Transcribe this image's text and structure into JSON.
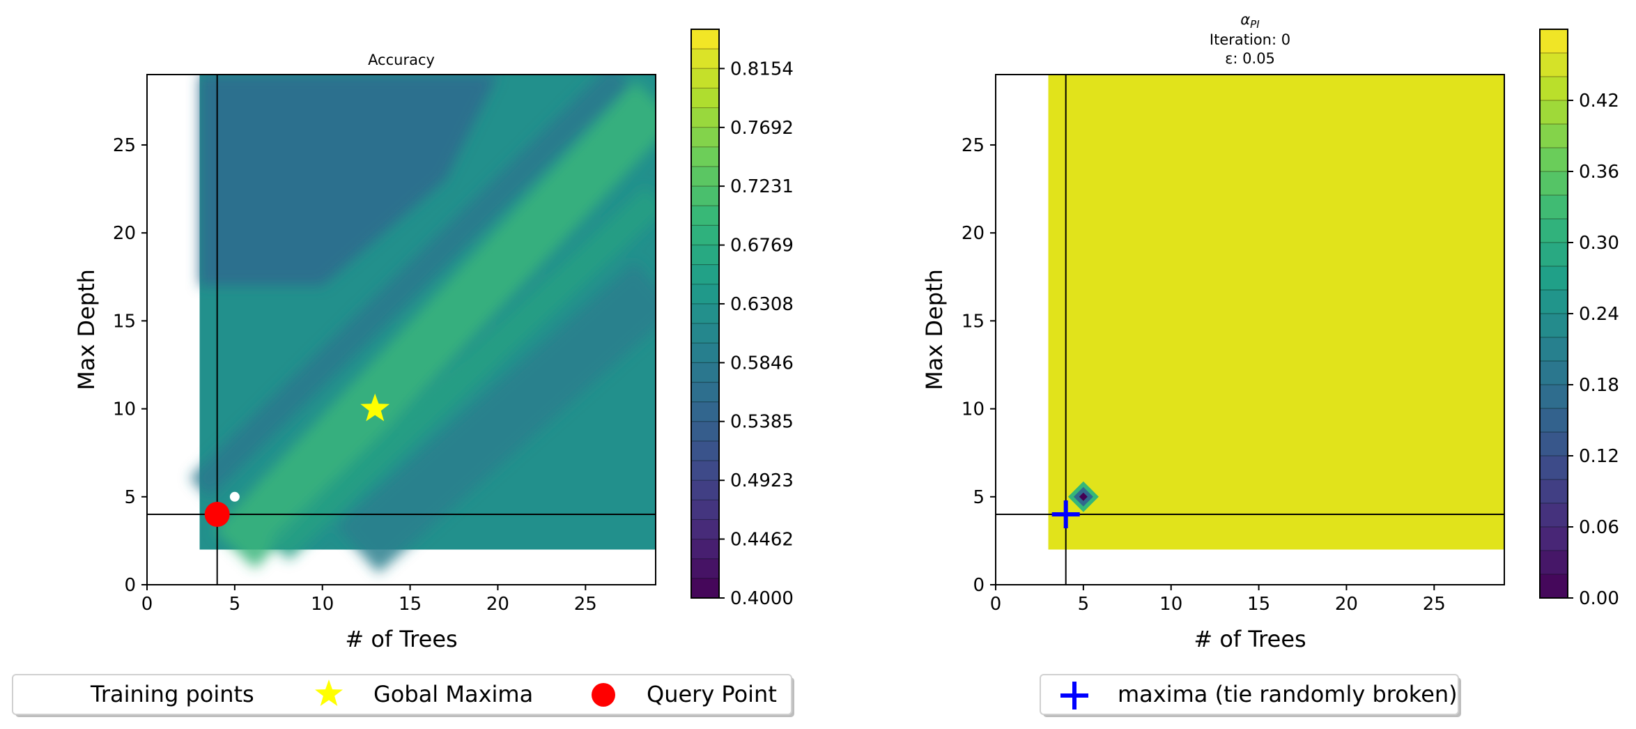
{
  "chart_data": [
    {
      "type": "heatmap",
      "title": "Accuracy",
      "xlabel": "# of Trees",
      "ylabel": "Max Depth",
      "xlim": [
        0,
        29
      ],
      "ylim": [
        0,
        29
      ],
      "xticks": [
        0,
        5,
        10,
        15,
        20,
        25
      ],
      "yticks": [
        0,
        5,
        10,
        15,
        20,
        25
      ],
      "data_extent": {
        "x": [
          3,
          29
        ],
        "y": [
          2,
          29
        ]
      },
      "base_color": "#22908c",
      "bands": [
        {
          "x0": 3,
          "y0": 5.5,
          "x1": 27,
          "y1": 29,
          "width": 1.6,
          "color": "#2a788e"
        },
        {
          "x0": 5,
          "y0": 2,
          "x1": 29,
          "y1": 27.5,
          "width": 3.2,
          "color": "#3ab67c"
        },
        {
          "x0": 7.5,
          "y0": 2,
          "x1": 29,
          "y1": 22,
          "width": 1.7,
          "color": "#27a083"
        },
        {
          "x0": 12,
          "y0": 2,
          "x1": 29,
          "y1": 17,
          "width": 3.6,
          "color": "#2c7f8e"
        }
      ],
      "dark_regions": [
        {
          "points": [
            [
              3,
              17
            ],
            [
              3,
              29
            ],
            [
              20,
              29
            ],
            [
              17,
              23
            ],
            [
              10,
              17
            ]
          ],
          "color": "#2f6d8e"
        }
      ],
      "crosshair": {
        "x": 4,
        "y": 4
      },
      "training_points": [
        {
          "x": 5,
          "y": 5
        }
      ],
      "global_maxima": {
        "x": 13,
        "y": 10
      },
      "query_point": {
        "x": 4,
        "y": 4
      },
      "colorbar": {
        "min": 0.4,
        "max": 0.8462,
        "levels": 29,
        "ticks": [
          "0.4000",
          "0.4462",
          "0.4923",
          "0.5385",
          "0.5846",
          "0.6308",
          "0.6769",
          "0.7231",
          "0.7692",
          "0.8154"
        ]
      },
      "legend": {
        "position": "bottom",
        "entries": [
          {
            "label": "Training points",
            "marker": "white-dot"
          },
          {
            "label": "Gobal Maxima",
            "marker": "star",
            "color": "#ffff00"
          },
          {
            "label": "Query Point",
            "marker": "circle",
            "color": "#ff0000"
          }
        ]
      }
    },
    {
      "type": "heatmap",
      "title_lines": [
        "Iteration: 0",
        "ε: 0.05"
      ],
      "title_math": "αPI",
      "xlabel": "# of Trees",
      "ylabel": "Max Depth",
      "xlim": [
        0,
        29
      ],
      "ylim": [
        0,
        29
      ],
      "xticks": [
        0,
        5,
        10,
        15,
        20,
        25
      ],
      "yticks": [
        0,
        5,
        10,
        15,
        20,
        25
      ],
      "data_extent": {
        "x": [
          3,
          29
        ],
        "y": [
          2,
          29
        ]
      },
      "base_color": "#e1e31b",
      "low_spot": {
        "x": 5,
        "y": 5,
        "value": 0.0
      },
      "crosshair": {
        "x": 4,
        "y": 4
      },
      "maxima": {
        "x": 4,
        "y": 4,
        "color": "#0000ff"
      },
      "colorbar": {
        "min": 0.0,
        "max": 0.48,
        "levels": 24,
        "ticks": [
          "0.00",
          "0.06",
          "0.12",
          "0.18",
          "0.24",
          "0.30",
          "0.36",
          "0.42"
        ]
      },
      "legend": {
        "position": "bottom",
        "entries": [
          {
            "label": "maxima (tie randomly broken)",
            "marker": "plus",
            "color": "#0000ff"
          }
        ]
      }
    }
  ]
}
